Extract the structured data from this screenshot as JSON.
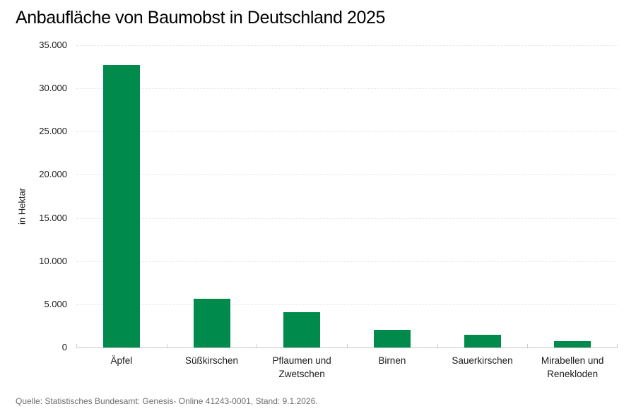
{
  "title": "Anbaufläche von Baumobst in Deutschland 2025",
  "source": "Quelle: Statistisches Bundesamt: Genesis- Online 41243-0001, Stand: 9.1.2026.",
  "colors": {
    "bar": "#008b4c",
    "gridline": "#e3e3e3",
    "axis_line": "#c6c6c6",
    "text": "#1a1a1a",
    "source_text": "#6e6e6e"
  },
  "chart_data": {
    "type": "bar",
    "title": "Anbaufläche von Baumobst in Deutschland 2025",
    "categories": [
      "Äpfel",
      "Süßkirschen",
      "Pflaumen und Zwetschen",
      "Birnen",
      "Sauerkirschen",
      "Mirabellen und Renekloden"
    ],
    "values": [
      32700,
      5650,
      4100,
      2050,
      1500,
      700
    ],
    "xlabel": "",
    "ylabel": "in Hektar",
    "ylim": [
      0,
      35000
    ],
    "ytick_interval": 5000,
    "ytick_labels": [
      "0",
      "5.000",
      "10.000",
      "15.000",
      "20.000",
      "25.000",
      "30.000",
      "35.000"
    ],
    "grid": true,
    "grid_style": "dotted",
    "legend_position": "none"
  }
}
